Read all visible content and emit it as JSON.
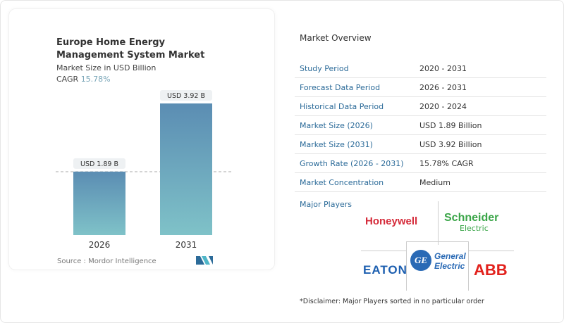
{
  "chart_data": {
    "type": "bar",
    "title": "Europe Home Energy Management System Market",
    "subtitle": "Market Size in USD Billion",
    "cagr_label": "CAGR",
    "cagr_value": "15.78%",
    "categories": [
      "2026",
      "2031"
    ],
    "values": [
      1.89,
      3.92
    ],
    "data_labels": [
      "USD 1.89 B",
      "USD 3.92 B"
    ],
    "bar_color_top": "#5b8db3",
    "bar_color_bottom": "#7fc2c8",
    "source": "Source :  Mordor Intelligence"
  },
  "overview": {
    "title": "Market Overview",
    "rows": [
      {
        "label": "Study Period",
        "value": "2020 - 2031"
      },
      {
        "label": "Forecast Data Period",
        "value": "2026 - 2031"
      },
      {
        "label": "Historical Data Period",
        "value": "2020 - 2024"
      },
      {
        "label": "Market Size (2026)",
        "value": "USD 1.89 Billion"
      },
      {
        "label": "Market Size (2031)",
        "value": "USD 3.92 Billion"
      },
      {
        "label": "Growth Rate (2026 - 2031)",
        "value": "15.78% CAGR"
      },
      {
        "label": "Market Concentration",
        "value": "Medium"
      }
    ]
  },
  "players": {
    "title": "Major Players",
    "logos": [
      "Honeywell",
      "Schneider Electric",
      "General Electric",
      "EATON",
      "ABB"
    ],
    "disclaimer": "*Disclaimer: Major Players sorted in no particular order"
  }
}
